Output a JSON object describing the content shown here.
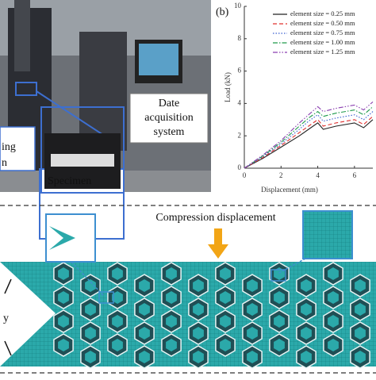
{
  "photo": {
    "left_fragments": [
      "ing",
      "n"
    ],
    "specimen": "Specimen",
    "daq": [
      "Date",
      "acquisition",
      "system"
    ]
  },
  "chart_data": {
    "type": "line",
    "panel_label": "(b)",
    "ylabel": "Load (kN)",
    "xlabel": "Displacement (mm)",
    "x": [
      0,
      1,
      2,
      3,
      3.5,
      4,
      4.3,
      5,
      6,
      6.5,
      7
    ],
    "series": [
      {
        "name": "element size = 0.25 mm",
        "color": "#222222",
        "dash": "",
        "values": [
          0,
          0.6,
          1.3,
          2.0,
          2.4,
          2.8,
          2.4,
          2.6,
          2.8,
          2.5,
          3.0
        ]
      },
      {
        "name": "element size = 0.50 mm",
        "color": "#e0302f",
        "dash": "5 3",
        "values": [
          0,
          0.65,
          1.4,
          2.2,
          2.6,
          3.0,
          2.6,
          2.8,
          3.0,
          2.7,
          3.2
        ]
      },
      {
        "name": "element size = 0.75 mm",
        "color": "#3a5fd0",
        "dash": "1.5 2",
        "values": [
          0,
          0.7,
          1.5,
          2.4,
          2.9,
          3.3,
          2.9,
          3.1,
          3.3,
          3.0,
          3.5
        ]
      },
      {
        "name": "element size = 1.00 mm",
        "color": "#1e9a4a",
        "dash": "6 2 1.5 2",
        "values": [
          0,
          0.75,
          1.6,
          2.6,
          3.1,
          3.5,
          3.2,
          3.4,
          3.6,
          3.3,
          3.8
        ]
      },
      {
        "name": "element size = 1.25 mm",
        "color": "#8a3fb0",
        "dash": "6 2 1.5 2 1.5 2",
        "values": [
          0,
          0.8,
          1.7,
          2.8,
          3.3,
          3.8,
          3.5,
          3.7,
          3.9,
          3.6,
          4.1
        ]
      }
    ],
    "xlim": [
      0,
      7
    ],
    "ylim": [
      0,
      10
    ],
    "xticks": [
      0,
      2,
      4,
      6
    ],
    "yticks": [
      0,
      2,
      4,
      6,
      8,
      10
    ],
    "grid": false
  },
  "simulation": {
    "title": "Compression displacement",
    "axis_fragment": "y"
  }
}
